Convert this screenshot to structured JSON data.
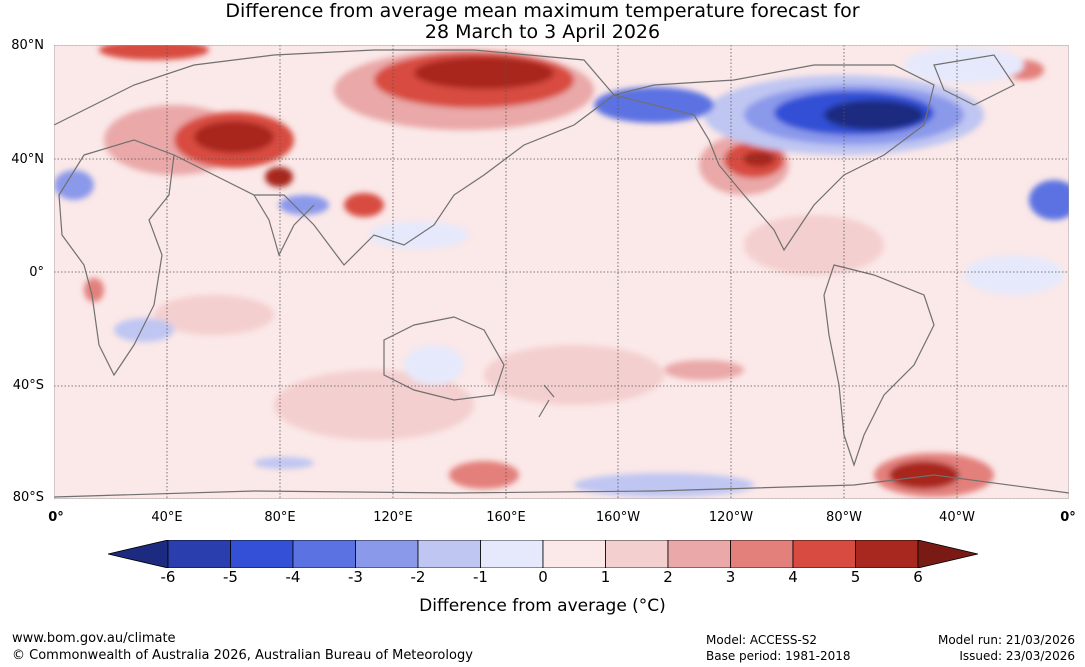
{
  "title_line1": "Difference from average mean maximum temperature forecast for",
  "title_line2": "28 March to 3 April 2026",
  "lat_labels": [
    "80°N",
    "40°N",
    "0°",
    "40°S",
    "80°S"
  ],
  "lon_labels": [
    "0°",
    "40°E",
    "80°E",
    "120°E",
    "160°E",
    "160°W",
    "120°W",
    "80°W",
    "40°W",
    "0°"
  ],
  "colorbar": {
    "label": "Difference from average (°C)",
    "ticks": [
      "-6",
      "-5",
      "-4",
      "-3",
      "-2",
      "-1",
      "0",
      "1",
      "2",
      "3",
      "4",
      "5",
      "6"
    ],
    "colors": [
      "#1c2a80",
      "#2a3ead",
      "#3350d6",
      "#5b72e2",
      "#8b99eb",
      "#bfc6f2",
      "#e6e9fb",
      "#fbe8e8",
      "#f4cfcf",
      "#eaa8a8",
      "#e3807c",
      "#d84b40",
      "#a8271f",
      "#7a1a15"
    ]
  },
  "footer": {
    "url": "www.bom.gov.au/climate",
    "copyright": "© Commonwealth of Australia 2026, Australian Bureau of Meteorology",
    "model": "Model: ACCESS-S2",
    "base_period": "Base period: 1981-2018",
    "model_run": "Model run: 21/03/2026",
    "issued": "Issued: 23/03/2026"
  }
}
